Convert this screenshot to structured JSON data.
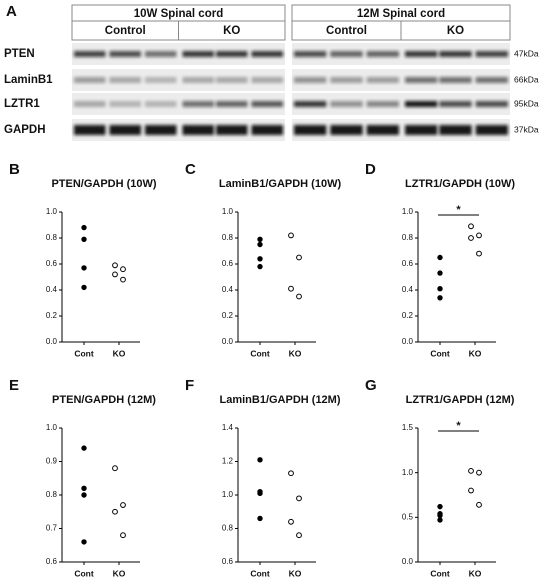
{
  "blot": {
    "panel": "A",
    "groups": [
      "10W Spinal cord",
      "12M Spinal cord"
    ],
    "conditions": [
      "Control",
      "KO",
      "Control",
      "KO"
    ],
    "proteins": [
      "PTEN",
      "LaminB1",
      "LZTR1",
      "GAPDH"
    ],
    "sizes": [
      "47kDa",
      "66kDa",
      "95kDa",
      "37kDa"
    ]
  },
  "chart_data": [
    {
      "type": "strip",
      "panel": "B",
      "title": "PTEN/GAPDH (10W)",
      "categories": [
        "Cont",
        "KO"
      ],
      "values": [
        [
          0.88,
          0.79,
          0.57,
          0.42
        ],
        [
          0.59,
          0.56,
          0.52,
          0.48
        ]
      ],
      "marker_fill": [
        "filled",
        "open"
      ],
      "ylim": [
        0,
        1
      ],
      "yticks": [
        {
          "value": 0,
          "label": "0.0"
        },
        0.2,
        0.4,
        0.6,
        0.8,
        {
          "value": 1,
          "label": "1.0"
        }
      ]
    },
    {
      "type": "strip",
      "panel": "C",
      "title": "LaminB1/GAPDH (10W)",
      "categories": [
        "Cont",
        "KO"
      ],
      "values": [
        [
          0.79,
          0.75,
          0.64,
          0.58
        ],
        [
          0.82,
          0.65,
          0.41,
          0.35
        ]
      ],
      "marker_fill": [
        "filled",
        "open"
      ],
      "ylim": [
        0,
        1
      ],
      "yticks": [
        {
          "value": 0,
          "label": "0.0"
        },
        0.2,
        0.4,
        0.6,
        0.8,
        {
          "value": 1,
          "label": "1.0"
        }
      ]
    },
    {
      "type": "strip",
      "panel": "D",
      "title": "LZTR1/GAPDH (10W)",
      "categories": [
        "Cont",
        "KO"
      ],
      "values": [
        [
          0.65,
          0.53,
          0.41,
          0.34
        ],
        [
          0.89,
          0.82,
          0.8,
          0.68
        ]
      ],
      "marker_fill": [
        "filled",
        "open"
      ],
      "ylim": [
        0,
        1
      ],
      "yticks": [
        {
          "value": 0,
          "label": "0.0"
        },
        0.2,
        0.4,
        0.6,
        0.8,
        {
          "value": 1,
          "label": "1.0"
        }
      ],
      "annotation": "*"
    },
    {
      "type": "strip",
      "panel": "E",
      "title": "PTEN/GAPDH (12M)",
      "categories": [
        "Cont",
        "KO"
      ],
      "values": [
        [
          0.94,
          0.82,
          0.8,
          0.66
        ],
        [
          0.88,
          0.77,
          0.75,
          0.68
        ]
      ],
      "marker_fill": [
        "filled",
        "open"
      ],
      "ylim": [
        0.6,
        1
      ],
      "yticks": [
        0.6,
        0.7,
        0.8,
        0.9,
        {
          "value": 1,
          "label": "1.0"
        }
      ]
    },
    {
      "type": "strip",
      "panel": "F",
      "title": "LaminB1/GAPDH (12M)",
      "categories": [
        "Cont",
        "KO"
      ],
      "values": [
        [
          1.21,
          1.02,
          1.01,
          0.86
        ],
        [
          1.13,
          0.98,
          0.84,
          0.76
        ]
      ],
      "marker_fill": [
        "filled",
        "open"
      ],
      "ylim": [
        0.6,
        1.4
      ],
      "yticks": [
        0.6,
        0.8,
        {
          "value": 1,
          "label": "1.0"
        },
        1.2,
        1.4
      ]
    },
    {
      "type": "strip",
      "panel": "G",
      "title": "LZTR1/GAPDH (12M)",
      "categories": [
        "Cont",
        "KO"
      ],
      "values": [
        [
          0.62,
          0.54,
          0.52,
          0.47
        ],
        [
          1.02,
          1.0,
          0.8,
          0.64
        ]
      ],
      "marker_fill": [
        "filled",
        "open"
      ],
      "ylim": [
        0,
        1.5
      ],
      "yticks": [
        {
          "value": 0,
          "label": "0.0"
        },
        0.5,
        {
          "value": 1,
          "label": "1.0"
        },
        1.5
      ],
      "annotation": "*"
    }
  ]
}
